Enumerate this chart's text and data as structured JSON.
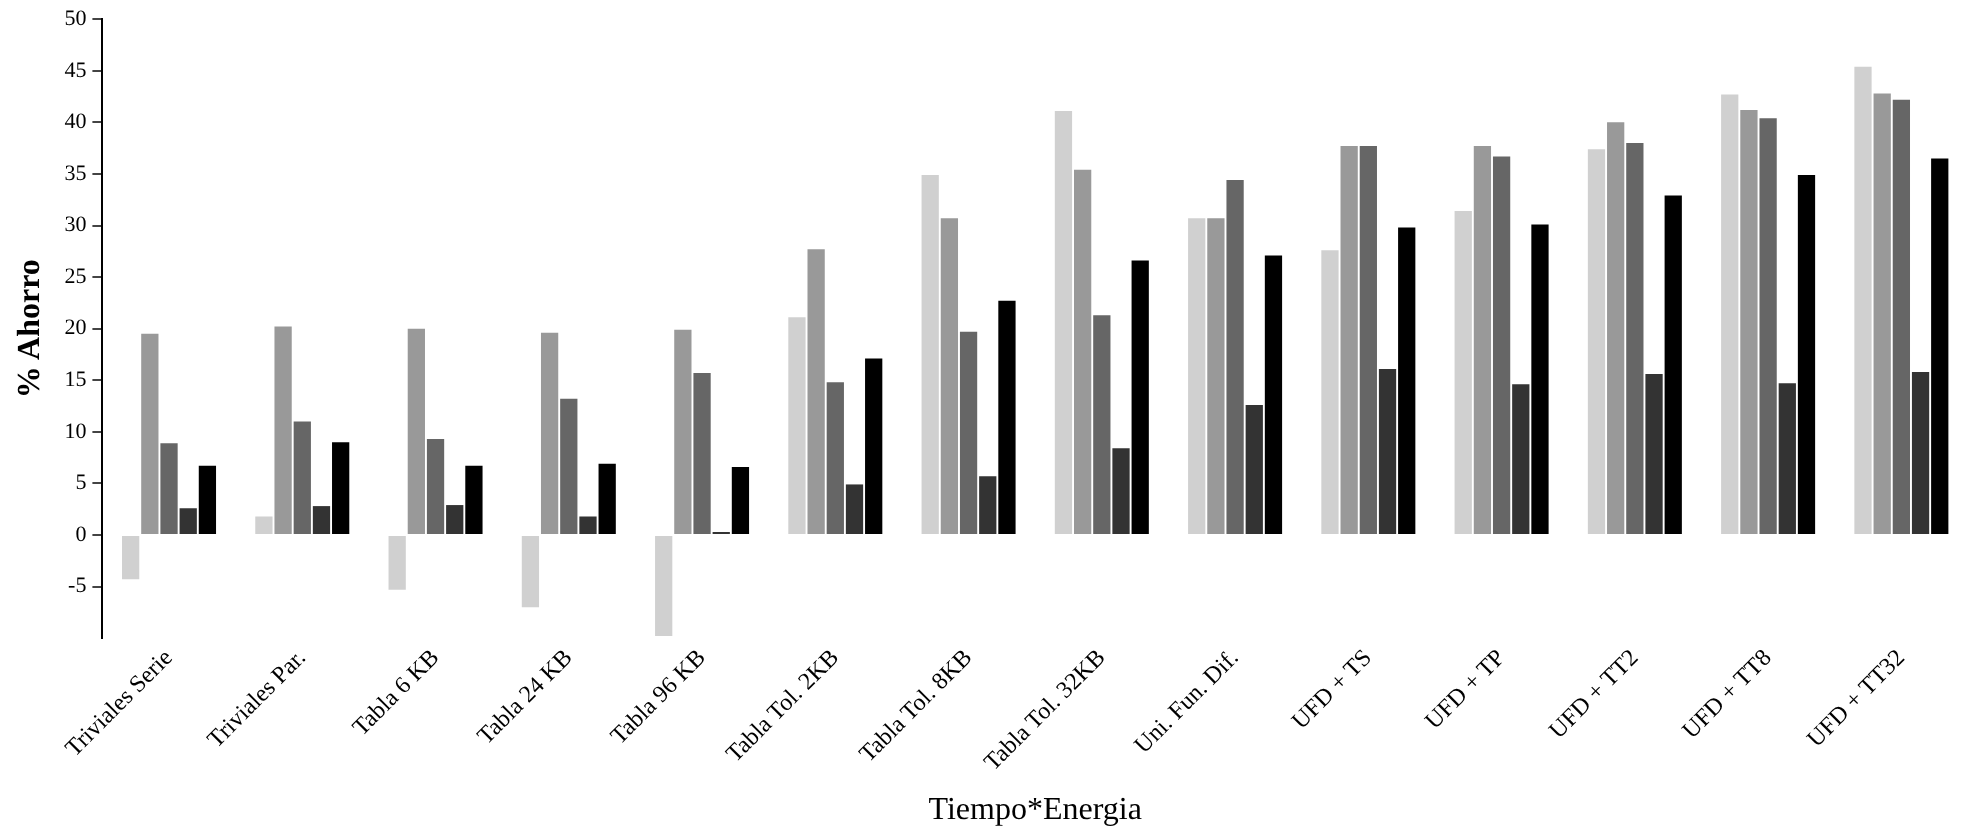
{
  "chart_data": {
    "type": "bar",
    "xlabel": "Tiempo*Energia",
    "ylabel": "% Ahorro",
    "categories": [
      "Triviales Serie",
      "Triviales Par.",
      "Tabla 6 KB",
      "Tabla 24 KB",
      "Tabla 96 KB",
      "Tabla Tol. 2KB",
      "Tabla Tol. 8KB",
      "Tabla Tol. 32KB",
      "Uni. Fun. Dif.",
      "UFD + TS",
      "UFD + TP",
      "UFD + TT2",
      "UFD + TT8",
      "UFD + TT32"
    ],
    "series": [
      {
        "color": "#d0d0d0",
        "values": [
          -4.3,
          1.8,
          -5.3,
          -7,
          -9.8,
          21.1,
          34.9,
          41.1,
          30.7,
          27.6,
          31.4,
          37.4,
          42.7,
          45.4
        ]
      },
      {
        "color": "#999999",
        "values": [
          19.5,
          20.2,
          20,
          19.6,
          19.9,
          27.7,
          30.7,
          35.4,
          30.7,
          37.7,
          37.7,
          40,
          41.2,
          42.8
        ]
      },
      {
        "color": "#666666",
        "values": [
          8.9,
          11,
          9.3,
          13.2,
          15.7,
          14.8,
          19.7,
          21.3,
          34.4,
          37.7,
          36.7,
          38,
          40.4,
          42.2
        ]
      },
      {
        "color": "#333333",
        "values": [
          2.6,
          2.8,
          2.9,
          1.8,
          0.3,
          4.9,
          5.7,
          8.4,
          12.6,
          16.1,
          14.6,
          15.6,
          14.7,
          15.8
        ]
      },
      {
        "color": "#000000",
        "values": [
          6.7,
          9,
          6.7,
          6.9,
          6.6,
          17.1,
          22.7,
          26.6,
          27.1,
          29.8,
          30.1,
          32.9,
          34.9,
          36.5
        ]
      }
    ],
    "ylim": [
      -10,
      50
    ],
    "yticks": [
      -5,
      0,
      5,
      10,
      15,
      20,
      25,
      30,
      35,
      40,
      45,
      50
    ],
    "grid": false,
    "legend": false
  }
}
